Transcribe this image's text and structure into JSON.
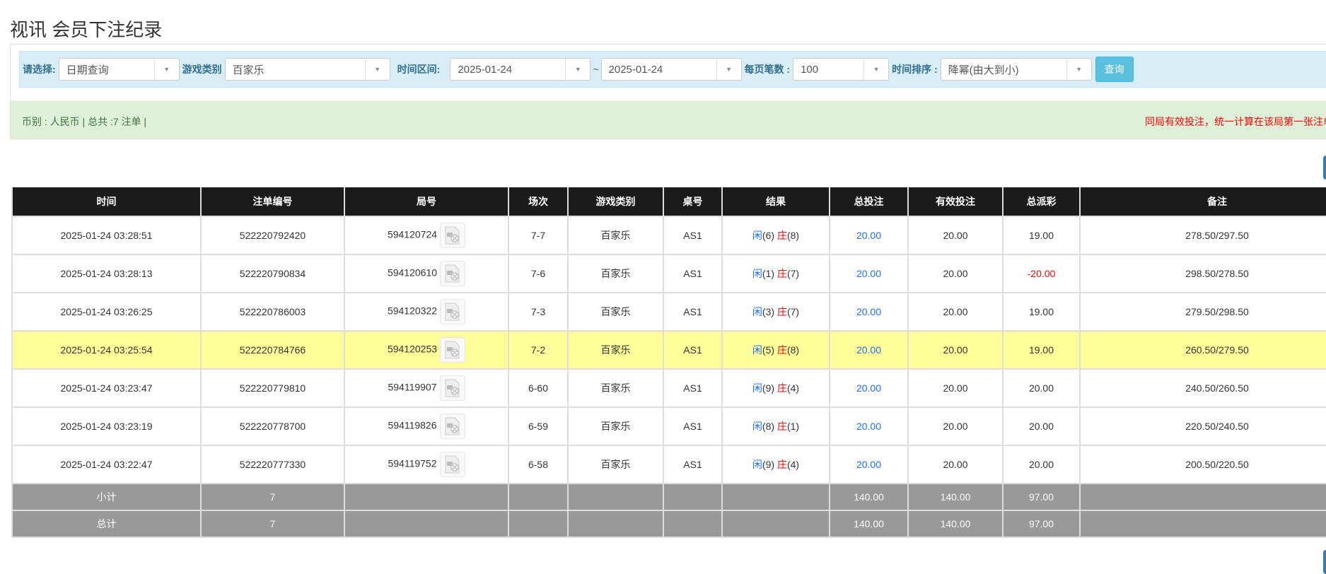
{
  "title": "视讯 会员下注纪录",
  "filter": {
    "select_label": "请选择:",
    "select_value": "日期查询",
    "game_label": "游戏类别",
    "game_value": "百家乐",
    "range_label": "时间区间:",
    "date_from": "2025-01-24",
    "tilde": "~",
    "date_to": "2025-01-24",
    "perpage_label": "每页笔数 :",
    "perpage_value": "100",
    "sort_label": "时间排序 :",
    "sort_value": "降幂(由大到小)",
    "query_button": "查询"
  },
  "info": {
    "left": "币别 : 人民币 | 总共 :7 注单 |",
    "right": "同局有效投注，统一计算在该局第一张注单内"
  },
  "table": {
    "headers": [
      "时间",
      "注单编号",
      "局号",
      "场次",
      "游戏类别",
      "桌号",
      "结果",
      "总投注",
      "有效投注",
      "总派彩",
      "备注"
    ],
    "player_label": "闲",
    "banker_label": "庄",
    "rows": [
      {
        "time": "2025-01-24 03:28:51",
        "bet_id": "522220792420",
        "round": "594120724",
        "shoe": "7-7",
        "game": "百家乐",
        "table": "AS1",
        "p": "(6)",
        "b": "(8)",
        "total": "20.00",
        "valid": "20.00",
        "payout": "19.00",
        "note": "278.50/297.50"
      },
      {
        "time": "2025-01-24 03:28:13",
        "bet_id": "522220790834",
        "round": "594120610",
        "shoe": "7-6",
        "game": "百家乐",
        "table": "AS1",
        "p": "(1)",
        "b": "(7)",
        "total": "20.00",
        "valid": "20.00",
        "payout": "-20.00",
        "note": "298.50/278.50"
      },
      {
        "time": "2025-01-24 03:26:25",
        "bet_id": "522220786003",
        "round": "594120322",
        "shoe": "7-3",
        "game": "百家乐",
        "table": "AS1",
        "p": "(3)",
        "b": "(7)",
        "total": "20.00",
        "valid": "20.00",
        "payout": "19.00",
        "note": "279.50/298.50"
      },
      {
        "time": "2025-01-24 03:25:54",
        "bet_id": "522220784766",
        "round": "594120253",
        "shoe": "7-2",
        "game": "百家乐",
        "table": "AS1",
        "p": "(5)",
        "b": "(8)",
        "total": "20.00",
        "valid": "20.00",
        "payout": "19.00",
        "note": "260.50/279.50"
      },
      {
        "time": "2025-01-24 03:23:47",
        "bet_id": "522220779810",
        "round": "594119907",
        "shoe": "6-60",
        "game": "百家乐",
        "table": "AS1",
        "p": "(9)",
        "b": "(4)",
        "total": "20.00",
        "valid": "20.00",
        "payout": "20.00",
        "note": "240.50/260.50"
      },
      {
        "time": "2025-01-24 03:23:19",
        "bet_id": "522220778700",
        "round": "594119826",
        "shoe": "6-59",
        "game": "百家乐",
        "table": "AS1",
        "p": "(8)",
        "b": "(1)",
        "total": "20.00",
        "valid": "20.00",
        "payout": "20.00",
        "note": "220.50/240.50"
      },
      {
        "time": "2025-01-24 03:22:47",
        "bet_id": "522220777330",
        "round": "594119752",
        "shoe": "6-58",
        "game": "百家乐",
        "table": "AS1",
        "p": "(9)",
        "b": "(4)",
        "total": "20.00",
        "valid": "20.00",
        "payout": "20.00",
        "note": "200.50/220.50"
      }
    ],
    "highlight_row": 3,
    "summary": [
      {
        "label": "小计",
        "count": "7",
        "total": "140.00",
        "valid": "140.00",
        "payout": "97.00"
      },
      {
        "label": "总计",
        "count": "7",
        "total": "140.00",
        "valid": "140.00",
        "payout": "97.00"
      }
    ]
  },
  "colors": {
    "header": "#1b1b1b",
    "highlight": "#ffff99",
    "summary": "#999999",
    "positive": "#1a6dff",
    "negative": "#ff0000"
  }
}
